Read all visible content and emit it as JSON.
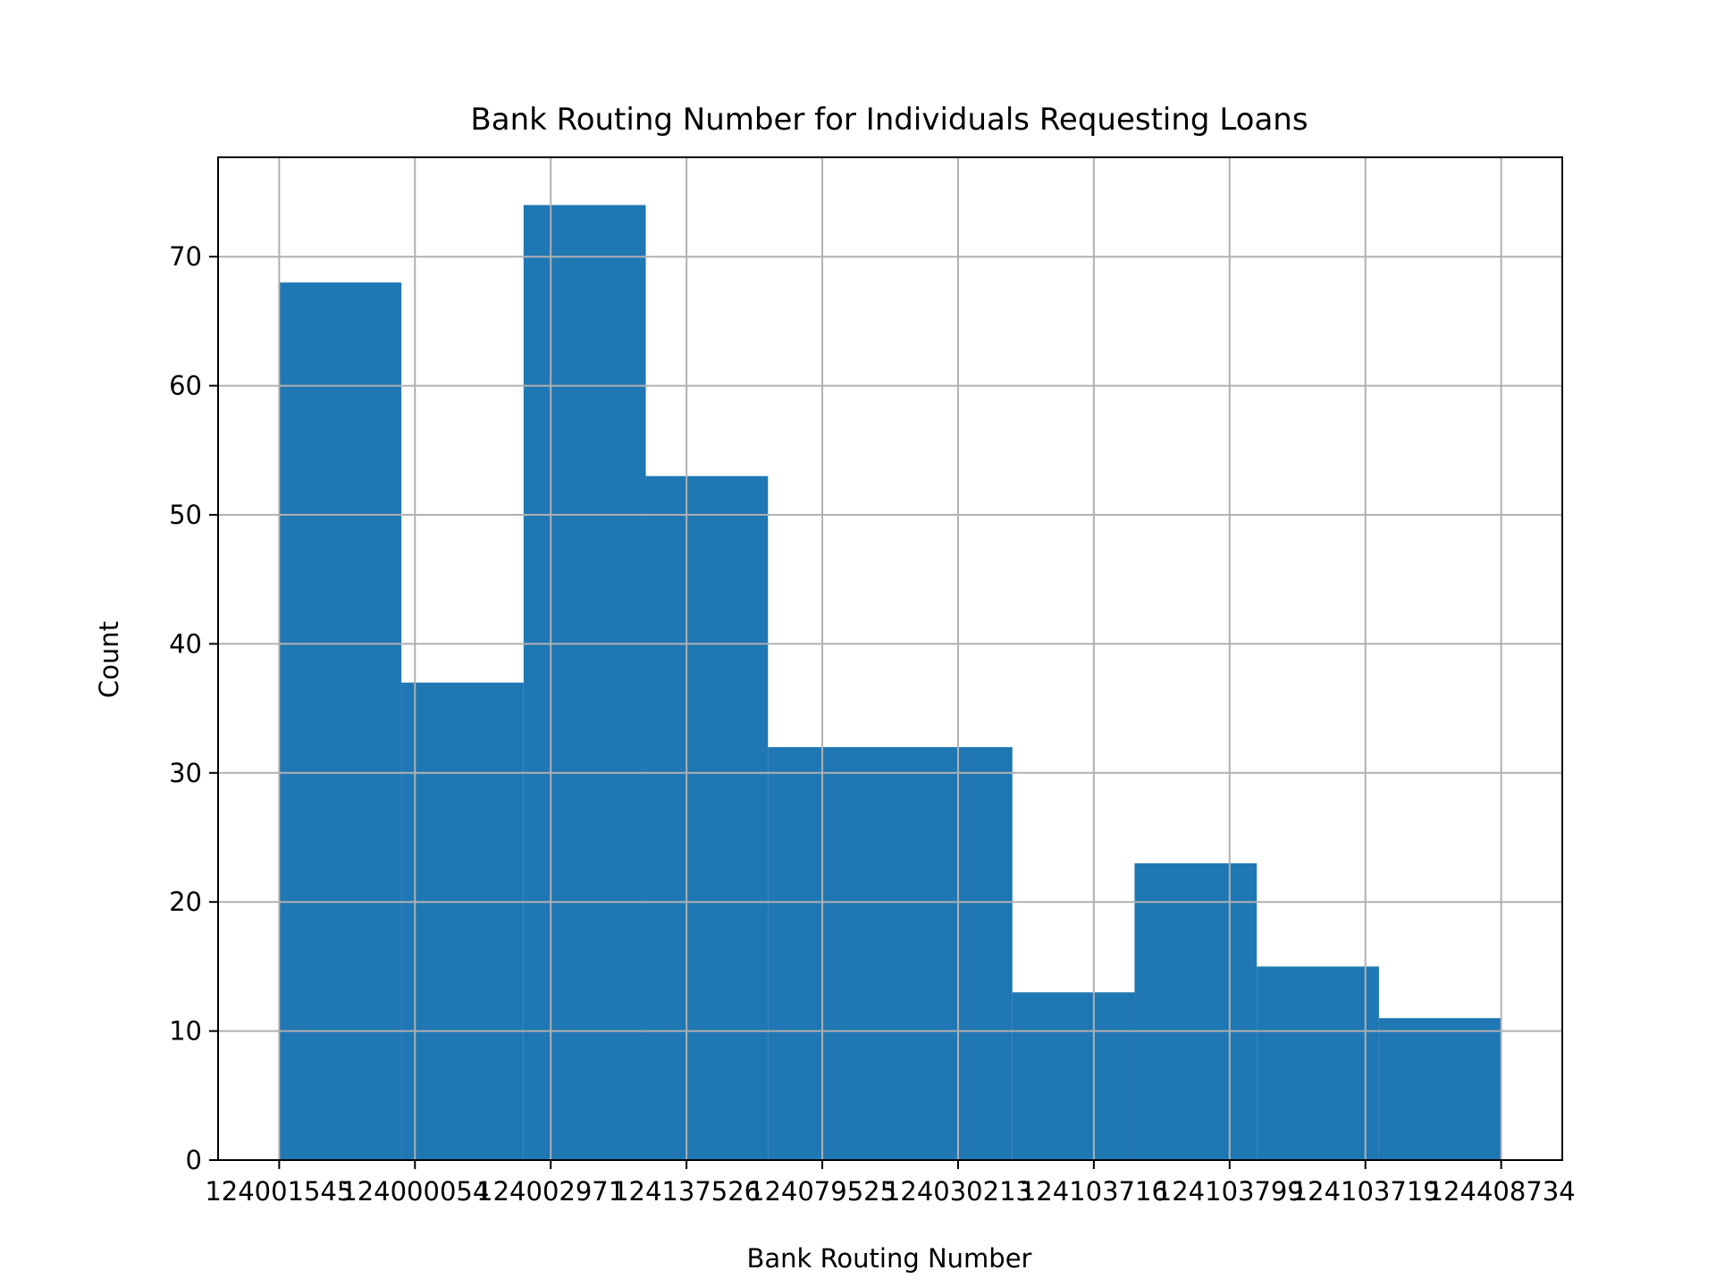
{
  "colors": {
    "bar": "#1f77b4",
    "grid": "#b0b0b0",
    "axis": "#000000",
    "background": "#ffffff"
  },
  "chart_data": {
    "type": "bar",
    "title": "Bank Routing Number for Individuals Requesting Loans",
    "xlabel": "Bank Routing Number",
    "ylabel": "Count",
    "grid": true,
    "xlim": [
      -0.45,
      9.45
    ],
    "ylim": [
      0,
      77.7
    ],
    "x_ticks": [
      0,
      1,
      2,
      3,
      4,
      5,
      6,
      7,
      8,
      9
    ],
    "x_tick_labels": [
      "124001545",
      "124000054",
      "124002971",
      "124137526",
      "124079525",
      "124030213",
      "124103716",
      "124103799",
      "124103719",
      "124408734"
    ],
    "y_ticks": [
      0,
      10,
      20,
      30,
      40,
      50,
      60,
      70
    ],
    "y_tick_labels": [
      "0",
      "10",
      "20",
      "30",
      "40",
      "50",
      "60",
      "70"
    ],
    "bins": [
      {
        "start": 0.0,
        "end": 0.9,
        "count": 68
      },
      {
        "start": 0.9,
        "end": 1.8,
        "count": 37
      },
      {
        "start": 1.8,
        "end": 2.7,
        "count": 74
      },
      {
        "start": 2.7,
        "end": 3.6,
        "count": 53
      },
      {
        "start": 3.6,
        "end": 4.5,
        "count": 32
      },
      {
        "start": 4.5,
        "end": 5.4,
        "count": 32
      },
      {
        "start": 5.4,
        "end": 6.3,
        "count": 13
      },
      {
        "start": 6.3,
        "end": 7.2,
        "count": 23
      },
      {
        "start": 7.2,
        "end": 8.1,
        "count": 15
      },
      {
        "start": 8.1,
        "end": 9.0,
        "count": 11
      }
    ]
  }
}
